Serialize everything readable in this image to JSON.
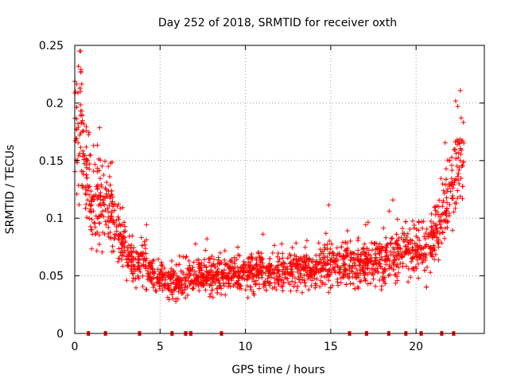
{
  "chart_data": {
    "type": "scatter",
    "title": "Day 252 of 2018, SRMTID for receiver oxth",
    "xlabel": "GPS time / hours",
    "ylabel": "SRMTID / TECUs",
    "xlim": [
      0,
      24
    ],
    "ylim": [
      0,
      0.25
    ],
    "x_ticks": [
      0,
      5,
      10,
      15,
      20
    ],
    "x_tick_labels": [
      "0",
      "5",
      "10",
      "15",
      "20"
    ],
    "y_ticks": [
      0,
      0.05,
      0.1,
      0.15,
      0.2,
      0.25
    ],
    "y_tick_labels": [
      "0",
      "0.05",
      "0.1",
      "0.15",
      "0.2",
      "0.25"
    ],
    "grid": true,
    "marker": "+",
    "color": "#ff0000",
    "series": [
      {
        "profile": [
          [
            0.0,
            0.17
          ],
          [
            0.3,
            0.19
          ],
          [
            0.6,
            0.15
          ],
          [
            1.0,
            0.11
          ],
          [
            1.5,
            0.12
          ],
          [
            2.0,
            0.11
          ],
          [
            2.5,
            0.09
          ],
          [
            3.0,
            0.07
          ],
          [
            3.5,
            0.06
          ],
          [
            4.0,
            0.06
          ],
          [
            5.0,
            0.05
          ],
          [
            5.5,
            0.045
          ],
          [
            6.0,
            0.045
          ],
          [
            7.0,
            0.05
          ],
          [
            8.0,
            0.05
          ],
          [
            9.0,
            0.052
          ],
          [
            10.0,
            0.053
          ],
          [
            11.0,
            0.053
          ],
          [
            12.0,
            0.053
          ],
          [
            13.0,
            0.055
          ],
          [
            14.0,
            0.057
          ],
          [
            15.0,
            0.062
          ],
          [
            16.0,
            0.06
          ],
          [
            17.0,
            0.062
          ],
          [
            18.0,
            0.065
          ],
          [
            19.0,
            0.068
          ],
          [
            20.0,
            0.072
          ],
          [
            20.5,
            0.075
          ],
          [
            21.0,
            0.08
          ],
          [
            21.5,
            0.1
          ],
          [
            22.0,
            0.12
          ],
          [
            22.5,
            0.15
          ],
          [
            22.8,
            0.16
          ]
        ],
        "count": 2200
      }
    ],
    "zero_points_x": [
      0.8,
      1.8,
      3.8,
      5.7,
      6.5,
      6.8,
      8.6,
      16.1,
      17.1,
      18.4,
      19.4,
      20.3,
      21.5,
      22.2
    ]
  }
}
